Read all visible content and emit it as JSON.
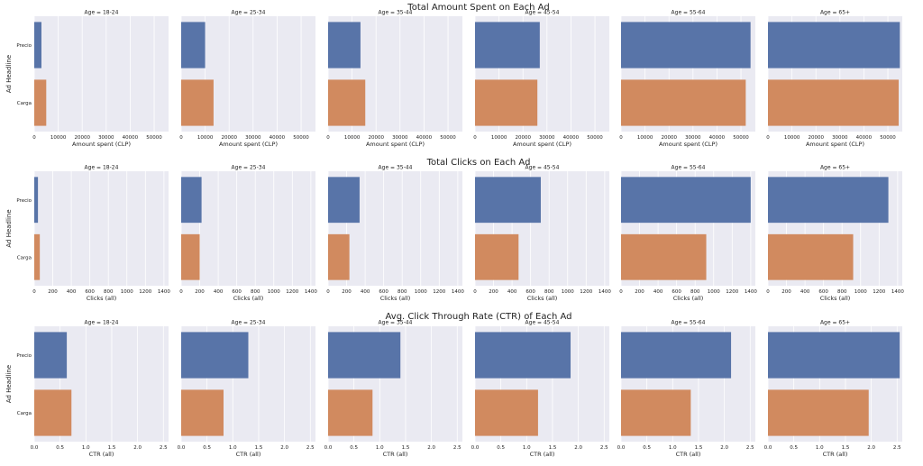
{
  "figure": {
    "colors": {
      "panel_bg": "#eaeaf2",
      "grid": "#ffffff",
      "precio": "#5874a8",
      "carga": "#d18a5f",
      "text": "#222222"
    }
  },
  "chart_data": [
    {
      "type": "bar",
      "orientation": "horizontal",
      "title": "Total Amount Spent on Each Ad",
      "ylabel": "Ad Headline",
      "xlabel": "Amount spent (CLP)",
      "categories": [
        "Precio",
        "Carga"
      ],
      "xlim": [
        0,
        56000
      ],
      "xticks": [
        0,
        10000,
        20000,
        30000,
        40000,
        50000
      ],
      "grid": true,
      "panels": [
        {
          "title": "Age = 18-24",
          "values": [
            3000,
            5000
          ]
        },
        {
          "title": "Age = 25-34",
          "values": [
            10000,
            13500
          ]
        },
        {
          "title": "Age = 35-44",
          "values": [
            13500,
            15500
          ]
        },
        {
          "title": "Age = 45-54",
          "values": [
            27000,
            26000
          ]
        },
        {
          "title": "Age = 55-64",
          "values": [
            54000,
            52000
          ]
        },
        {
          "title": "Age = 65+",
          "values": [
            55000,
            54500
          ]
        }
      ]
    },
    {
      "type": "bar",
      "orientation": "horizontal",
      "title": "Total Clicks on Each Ad",
      "ylabel": "Ad Headline",
      "xlabel": "Clicks (all)",
      "categories": [
        "Precio",
        "Carga"
      ],
      "xlim": [
        0,
        1450
      ],
      "xticks": [
        0,
        200,
        400,
        600,
        800,
        1000,
        1200,
        1400
      ],
      "grid": true,
      "panels": [
        {
          "title": "Age = 18-24",
          "values": [
            40,
            60
          ]
        },
        {
          "title": "Age = 25-34",
          "values": [
            220,
            200
          ]
        },
        {
          "title": "Age = 35-44",
          "values": [
            340,
            230
          ]
        },
        {
          "title": "Age = 45-54",
          "values": [
            710,
            470
          ]
        },
        {
          "title": "Age = 55-64",
          "values": [
            1400,
            920
          ]
        },
        {
          "title": "Age = 65+",
          "values": [
            1300,
            920
          ]
        }
      ]
    },
    {
      "type": "bar",
      "orientation": "horizontal",
      "title": "Avg. Click Through Rate (CTR) of Each Ad",
      "ylabel": "Ad Headline",
      "xlabel": "CTR (all)",
      "categories": [
        "Precio",
        "Carga"
      ],
      "xlim": [
        0,
        2.6
      ],
      "xticks": [
        0.0,
        0.5,
        1.0,
        1.5,
        2.0,
        2.5
      ],
      "xtick_decimals": 1,
      "grid": true,
      "panels": [
        {
          "title": "Age = 18-24",
          "values": [
            0.63,
            0.72
          ]
        },
        {
          "title": "Age = 25-34",
          "values": [
            1.3,
            0.82
          ]
        },
        {
          "title": "Age = 35-44",
          "values": [
            1.4,
            0.86
          ]
        },
        {
          "title": "Age = 45-54",
          "values": [
            1.85,
            1.22
          ]
        },
        {
          "title": "Age = 55-64",
          "values": [
            2.13,
            1.35
          ]
        },
        {
          "title": "Age = 65+",
          "values": [
            2.55,
            1.95
          ]
        }
      ]
    }
  ]
}
